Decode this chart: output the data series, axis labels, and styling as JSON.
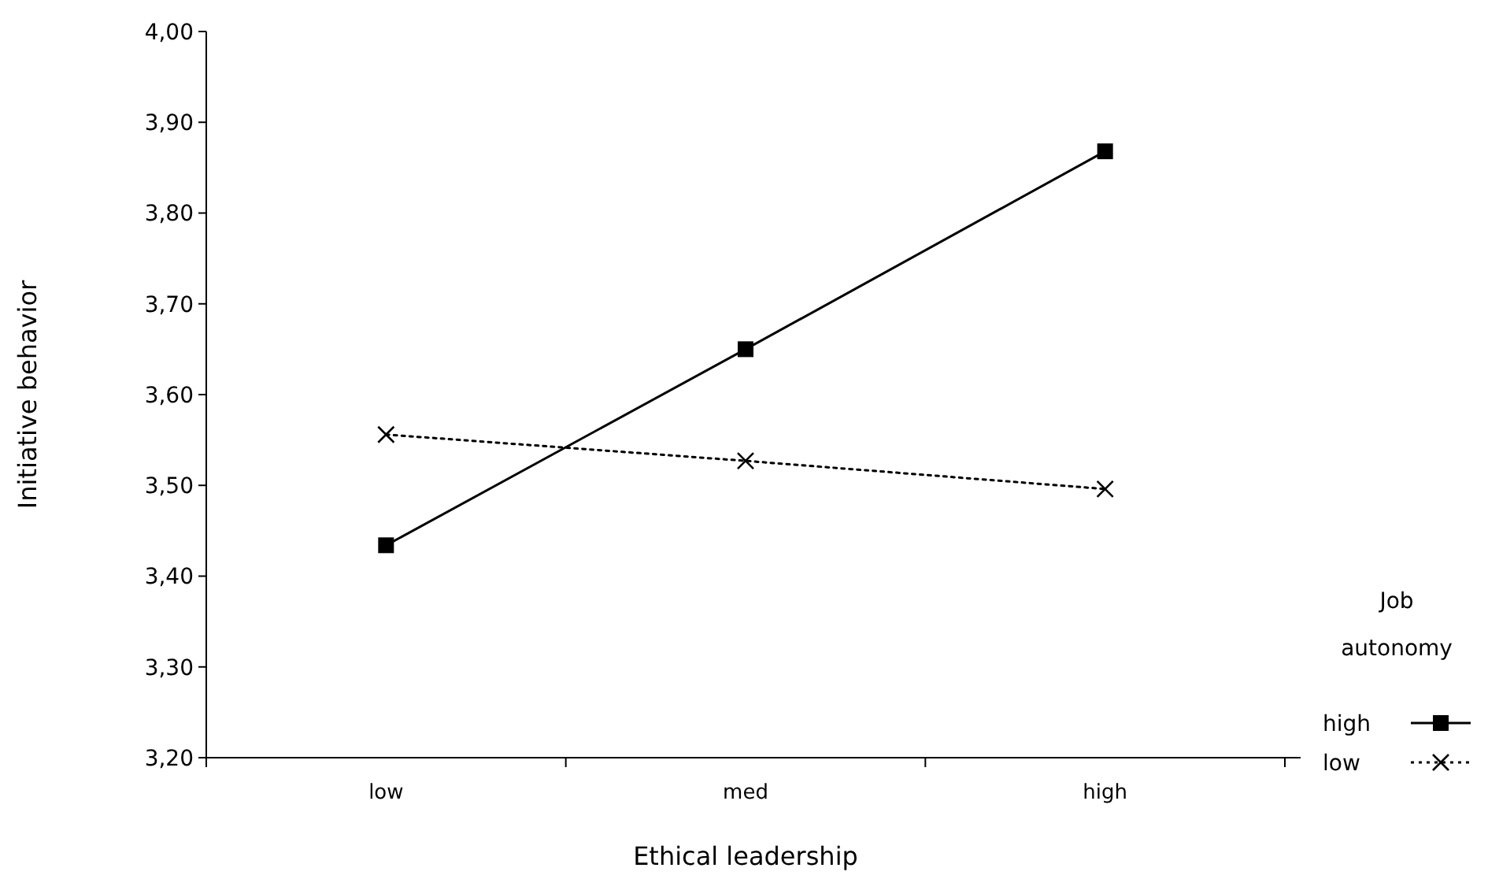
{
  "chart_data": {
    "type": "line",
    "xlabel": "Ethical leadership",
    "ylabel": "Initiative behavior",
    "legend_title": "Job autonomy",
    "legend": "right",
    "grid": false,
    "categories": [
      "low",
      "med",
      "high"
    ],
    "ylim": [
      3.2,
      4.0
    ],
    "yticks": [
      {
        "value": 3.2,
        "label": "3,20"
      },
      {
        "value": 3.3,
        "label": "3,30"
      },
      {
        "value": 3.4,
        "label": "3,40"
      },
      {
        "value": 3.5,
        "label": "3,50"
      },
      {
        "value": 3.6,
        "label": "3,60"
      },
      {
        "value": 3.7,
        "label": "3,70"
      },
      {
        "value": 3.8,
        "label": "3,80"
      },
      {
        "value": 3.9,
        "label": "3,90"
      },
      {
        "value": 4.0,
        "label": "4,00"
      }
    ],
    "series": [
      {
        "name": "high",
        "color": "#000000",
        "marker": "square",
        "line_style": "solid",
        "values": [
          3.434,
          3.65,
          3.868
        ]
      },
      {
        "name": "low",
        "color": "#000000",
        "marker": "cross",
        "line_style": "dotted",
        "values": [
          3.556,
          3.527,
          3.496
        ]
      }
    ]
  }
}
